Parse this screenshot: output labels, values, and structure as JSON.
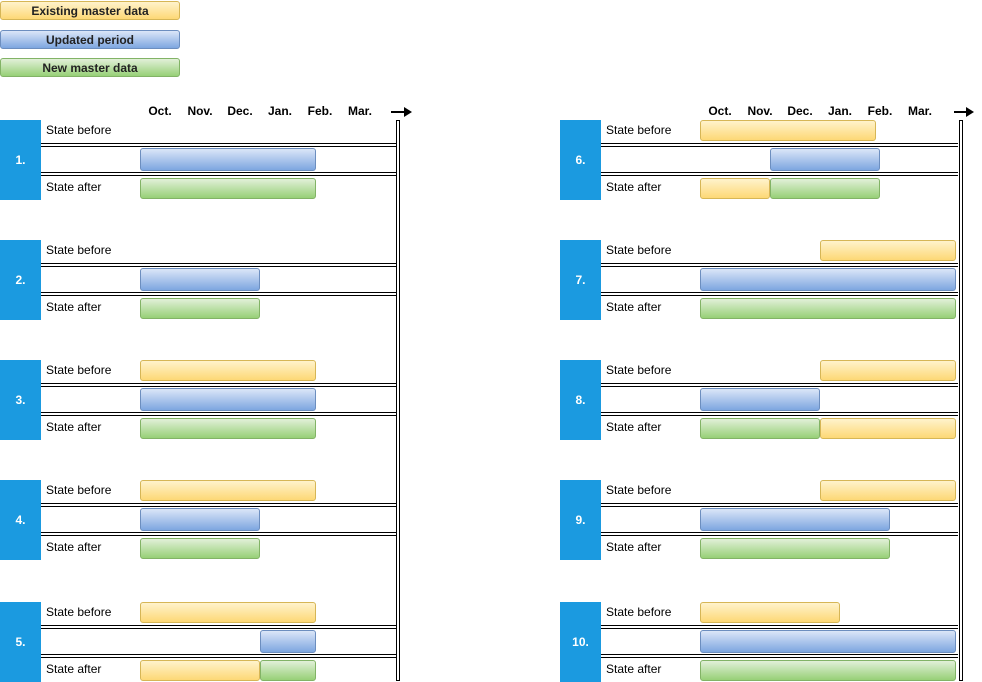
{
  "legend": [
    {
      "label": "Existing master data",
      "kind": "y"
    },
    {
      "label": "Updated period",
      "kind": "b"
    },
    {
      "label": "New master data",
      "kind": "g"
    }
  ],
  "months": [
    "Oct.",
    "Nov.",
    "Dec.",
    "Jan.",
    "Feb.",
    "Mar."
  ],
  "row_labels": {
    "before": "State before",
    "after": "State after"
  },
  "colors": {
    "existing": "#fdd876",
    "updated": "#7ea6e0",
    "new": "#97d077",
    "number_block": "#1b9ae0"
  },
  "scenarios": [
    {
      "number": "1.",
      "before": [],
      "updated": [
        [
          2,
          6.4
        ]
      ],
      "after": [
        {
          "kind": "g",
          "span": [
            2,
            6.4
          ]
        }
      ]
    },
    {
      "number": "2.",
      "before": [],
      "updated": [
        [
          2,
          5
        ]
      ],
      "after": [
        {
          "kind": "g",
          "span": [
            2,
            5
          ]
        }
      ]
    },
    {
      "number": "3.",
      "before": [
        [
          2,
          6.4
        ]
      ],
      "updated": [
        [
          2,
          6.4
        ]
      ],
      "after": [
        {
          "kind": "g",
          "span": [
            2,
            6.4
          ]
        }
      ]
    },
    {
      "number": "4.",
      "before": [
        [
          2,
          6.4
        ]
      ],
      "updated": [
        [
          2,
          5
        ]
      ],
      "after": [
        {
          "kind": "g",
          "span": [
            2,
            5
          ]
        }
      ]
    },
    {
      "number": "5.",
      "before": [
        [
          2,
          6.4
        ]
      ],
      "updated": [
        [
          5,
          6.4
        ]
      ],
      "after": [
        {
          "kind": "y",
          "span": [
            2,
            5
          ]
        },
        {
          "kind": "g",
          "span": [
            5,
            6.4
          ]
        }
      ]
    },
    {
      "number": "6.",
      "before": [
        [
          2,
          6.4
        ]
      ],
      "updated": [
        [
          3.75,
          6.5
        ]
      ],
      "after": [
        {
          "kind": "y",
          "span": [
            2,
            3.75
          ]
        },
        {
          "kind": "g",
          "span": [
            3.75,
            6.5
          ]
        }
      ]
    },
    {
      "number": "7.",
      "before": [
        [
          5,
          8.4
        ]
      ],
      "updated": [
        [
          2,
          8.4
        ]
      ],
      "after": [
        {
          "kind": "g",
          "span": [
            2,
            8.4
          ]
        }
      ]
    },
    {
      "number": "8.",
      "before": [
        [
          5,
          8.4
        ]
      ],
      "updated": [
        [
          2,
          5
        ]
      ],
      "after": [
        {
          "kind": "g",
          "span": [
            2,
            5
          ]
        },
        {
          "kind": "y",
          "span": [
            5,
            8.4
          ]
        }
      ]
    },
    {
      "number": "9.",
      "before": [
        [
          5,
          8.4
        ]
      ],
      "updated": [
        [
          2,
          6.75
        ]
      ],
      "after": [
        {
          "kind": "g",
          "span": [
            2,
            6.75
          ]
        }
      ]
    },
    {
      "number": "10.",
      "before": [
        [
          2,
          5.5
        ]
      ],
      "updated": [
        [
          2,
          8.4
        ]
      ],
      "after": [
        {
          "kind": "g",
          "span": [
            2,
            8.4
          ]
        }
      ]
    }
  ]
}
